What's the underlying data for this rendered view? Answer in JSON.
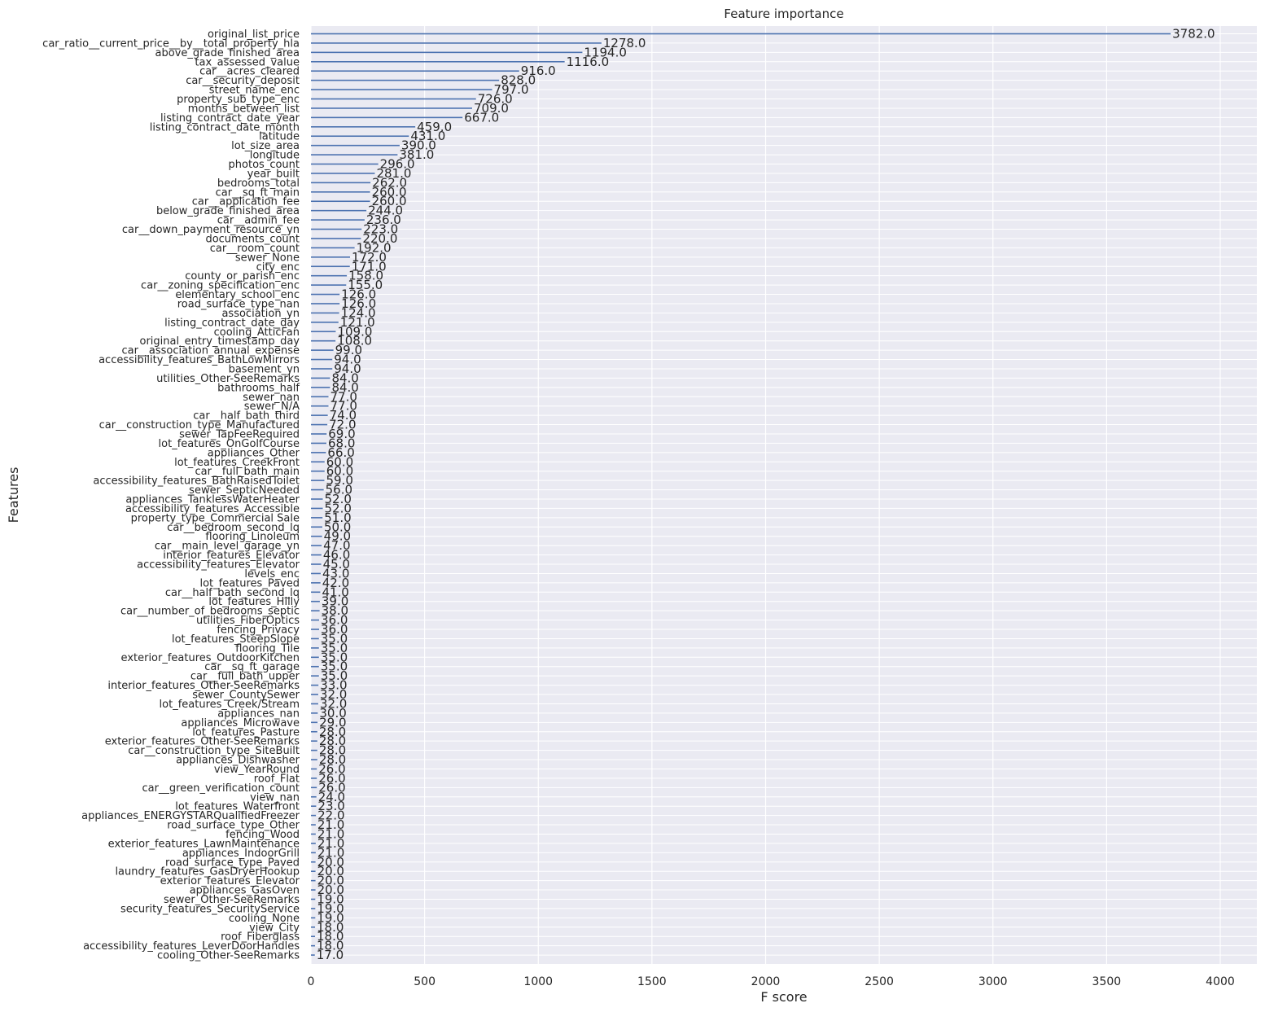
{
  "chart_data": {
    "type": "bar",
    "orientation": "horizontal",
    "title": "Feature importance",
    "xlabel": "F score",
    "ylabel": "Features",
    "xlim": [
      0,
      4000
    ],
    "xticks": [
      0,
      500,
      1000,
      1500,
      2000,
      2500,
      3000,
      3500,
      4000
    ],
    "grid": true,
    "colors": {
      "background": "#eaeaf2",
      "grid": "#ffffff",
      "bar": "#4c72b0",
      "text": "#262626"
    },
    "categories": [
      "original_list_price",
      "car_ratio__current_price__by__total_property_hla",
      "above_grade_finished_area",
      "tax_assessed_value",
      "car__acres_cleared",
      "car__security_deposit",
      "street_name_enc",
      "property_sub_type_enc",
      "months_between_list",
      "listing_contract_date_year",
      "listing_contract_date_month",
      "latitude",
      "lot_size_area",
      "longitude",
      "photos_count",
      "year_built",
      "bedrooms_total",
      "car__sq_ft_main",
      "car__application_fee",
      "below_grade_finished_area",
      "car__admin_fee",
      "car__down_payment_resource_yn",
      "documents_count",
      "car__room_count",
      "sewer_None",
      "city_enc",
      "county_or_parish_enc",
      "car__zoning_specification_enc",
      "elementary_school_enc",
      "road_surface_type_nan",
      "association_yn",
      "listing_contract_date_day",
      "cooling_AtticFan",
      "original_entry_timestamp_day",
      "car__association_annual_expense",
      "accessibility_features_BathLowMirrors",
      "basement_yn",
      "utilities_Other-SeeRemarks",
      "bathrooms_half",
      "sewer_nan",
      "sewer_N/A",
      "car__half_bath_third",
      "car__construction_type_Manufactured",
      "sewer_TapFeeRequired",
      "lot_features_OnGolfCourse",
      "appliances_Other",
      "lot_features_CreekFront",
      "car__full_bath_main",
      "accessibility_features_BathRaisedToilet",
      "sewer_SepticNeeded",
      "appliances_TanklessWaterHeater",
      "accessibility_features_Accessible",
      "property_type_Commercial Sale",
      "car__bedroom_second_lq",
      "flooring_Linoleum",
      "car__main_level_garage_yn",
      "interior_features_Elevator",
      "accessibility_features_Elevator",
      "levels_enc",
      "lot_features_Paved",
      "car__half_bath_second_lq",
      "lot_features_Hilly",
      "car__number_of_bedrooms_septic",
      "utilities_FiberOptics",
      "fencing_Privacy",
      "lot_features_SteepSlope",
      "flooring_Tile",
      "exterior_features_OutdoorKitchen",
      "car__sq_ft_garage",
      "car__full_bath_upper",
      "interior_features_Other-SeeRemarks",
      "sewer_CountySewer",
      "lot_features_Creek/Stream",
      "appliances_nan",
      "appliances_Microwave",
      "lot_features_Pasture",
      "exterior_features_Other-SeeRemarks",
      "car__construction_type_SiteBuilt",
      "appliances_Dishwasher",
      "view_YearRound",
      "roof_Flat",
      "car__green_verification_count",
      "view_nan",
      "lot_features_Waterfront",
      "appliances_ENERGYSTARQualifiedFreezer",
      "road_surface_type_Other",
      "fencing_Wood",
      "exterior_features_LawnMaintenance",
      "appliances_IndoorGrill",
      "road_surface_type_Paved",
      "laundry_features_GasDryerHookup",
      "exterior_features_Elevator",
      "appliances_GasOven",
      "sewer_Other-SeeRemarks",
      "security_features_SecurityService",
      "cooling_None",
      "view_City",
      "roof_Fiberglass",
      "accessibility_features_LeverDoorHandles",
      "cooling_Other-SeeRemarks"
    ],
    "values": [
      3782,
      1278,
      1194,
      1116,
      916,
      828,
      797,
      726,
      709,
      667,
      459,
      431,
      390,
      381,
      296,
      281,
      262,
      260,
      260,
      244,
      236,
      223,
      220,
      192,
      172,
      171,
      158,
      155,
      126,
      126,
      124,
      121,
      109,
      108,
      99,
      94,
      94,
      84,
      84,
      77,
      77,
      74,
      72,
      69,
      68,
      66,
      60,
      60,
      59,
      56,
      52,
      52,
      51,
      50,
      49,
      47,
      46,
      45,
      43,
      42,
      41,
      39,
      38,
      36,
      36,
      35,
      35,
      35,
      35,
      35,
      33,
      32,
      32,
      30,
      29,
      28,
      28,
      28,
      28,
      26,
      26,
      26,
      24,
      23,
      22,
      21,
      21,
      21,
      21,
      20,
      20,
      20,
      20,
      19,
      19,
      19,
      18,
      18,
      18,
      17
    ],
    "value_labels": [
      "3782.0",
      "1278.0",
      "1194.0",
      "1116.0",
      "916.0",
      "828.0",
      "797.0",
      "726.0",
      "709.0",
      "667.0",
      "459.0",
      "431.0",
      "390.0",
      "381.0",
      "296.0",
      "281.0",
      "262.0",
      "260.0",
      "260.0",
      "244.0",
      "236.0",
      "223.0",
      "220.0",
      "192.0",
      "172.0",
      "171.0",
      "158.0",
      "155.0",
      "126.0",
      "126.0",
      "124.0",
      "121.0",
      "109.0",
      "108.0",
      "99.0",
      "94.0",
      "94.0",
      "84.0",
      "84.0",
      "77.0",
      "77.0",
      "74.0",
      "72.0",
      "69.0",
      "68.0",
      "66.0",
      "60.0",
      "60.0",
      "59.0",
      "56.0",
      "52.0",
      "52.0",
      "51.0",
      "50.0",
      "49.0",
      "47.0",
      "46.0",
      "45.0",
      "43.0",
      "42.0",
      "41.0",
      "39.0",
      "38.0",
      "36.0",
      "36.0",
      "35.0",
      "35.0",
      "35.0",
      "35.0",
      "35.0",
      "33.0",
      "32.0",
      "32.0",
      "30.0",
      "29.0",
      "28.0",
      "28.0",
      "28.0",
      "28.0",
      "26.0",
      "26.0",
      "26.0",
      "24.0",
      "23.0",
      "22.0",
      "21.0",
      "21.0",
      "21.0",
      "21.0",
      "20.0",
      "20.0",
      "20.0",
      "20.0",
      "19.0",
      "19.0",
      "19.0",
      "18.0",
      "18.0",
      "18.0",
      "17.0"
    ]
  }
}
